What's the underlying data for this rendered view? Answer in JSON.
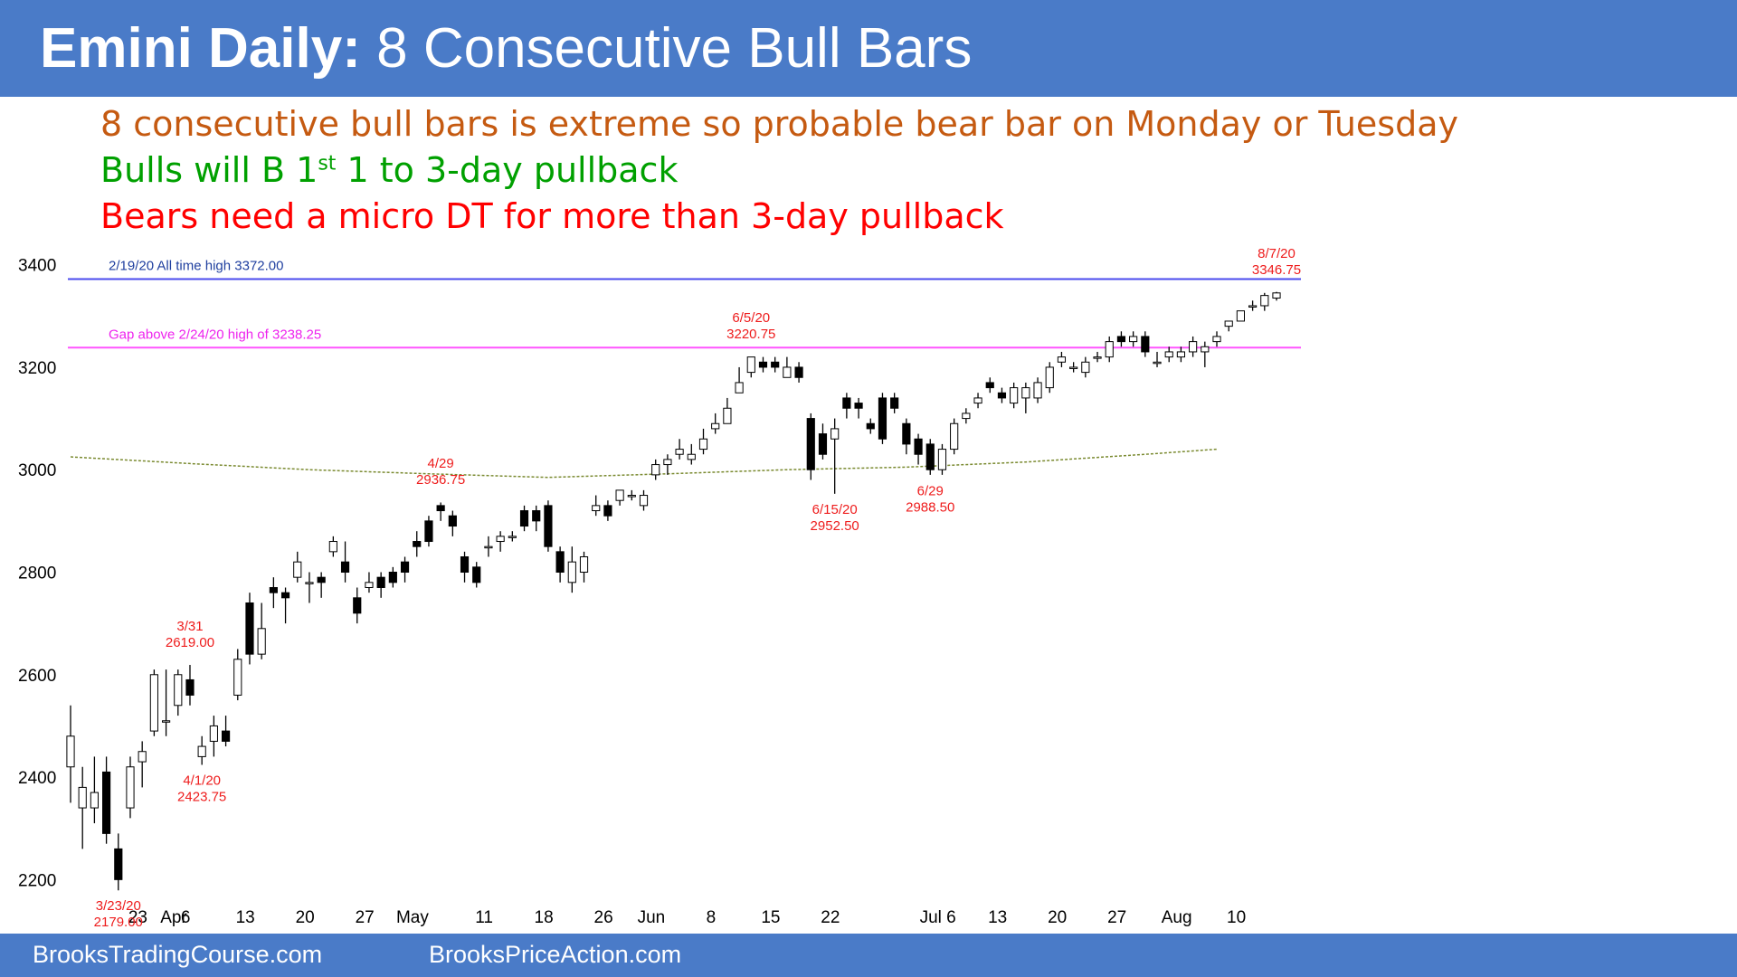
{
  "header": {
    "title_bold": "Emini Daily:",
    "title_rest": "8 Consecutive Bull Bars"
  },
  "notes": [
    {
      "text": "8 consecutive bull bars is extreme so probable bear bar on Monday or Tuesday",
      "color": "#c55a11"
    },
    {
      "text_before": "Bulls will B 1",
      "sup": "st",
      "text_after": " 1 to 3-day pullback",
      "color": "#00a000"
    },
    {
      "text": "Bears need a micro DT for more than 3-day pullback",
      "color": "#ff0000"
    }
  ],
  "footer": {
    "left": "BrooksTradingCourse.com",
    "right": "BrooksPriceAction.com"
  },
  "chart_data": {
    "type": "candlestick",
    "y_ticks": [
      2200,
      2400,
      2600,
      2800,
      3000,
      3200,
      3400
    ],
    "ylim": [
      2130,
      3440
    ],
    "x_ticks": [
      {
        "label": "23",
        "i": 2
      },
      {
        "label": "Apr",
        "i": 5
      },
      {
        "label": "6",
        "i": 6
      },
      {
        "label": "13",
        "i": 11
      },
      {
        "label": "20",
        "i": 16
      },
      {
        "label": "27",
        "i": 21
      },
      {
        "label": "May",
        "i": 25
      },
      {
        "label": "11",
        "i": 31
      },
      {
        "label": "18",
        "i": 36
      },
      {
        "label": "26",
        "i": 41
      },
      {
        "label": "Jun",
        "i": 45
      },
      {
        "label": "8",
        "i": 50
      },
      {
        "label": "15",
        "i": 55
      },
      {
        "label": "22",
        "i": 60
      },
      {
        "label": "Jul 6",
        "i": 69
      },
      {
        "label": "13",
        "i": 74
      },
      {
        "label": "20",
        "i": 79
      },
      {
        "label": "27",
        "i": 84
      },
      {
        "label": "Aug",
        "i": 89
      },
      {
        "label": "10",
        "i": 94
      }
    ],
    "hlines": [
      {
        "label": "2/19/20 All time high 3372.00",
        "value": 3372,
        "color": "#4a4aee",
        "text_color": "#1f3f9f"
      },
      {
        "label": "Gap above 2/24/20 high of 3238.25",
        "value": 3238.25,
        "color": "#ff55ff",
        "text_color": "#ee22ee"
      }
    ],
    "moving_average": {
      "color": "#7a8a30",
      "points": [
        [
          0,
          3025
        ],
        [
          10,
          3012
        ],
        [
          20,
          3000
        ],
        [
          30,
          2992
        ],
        [
          40,
          2985
        ],
        [
          50,
          2992
        ],
        [
          60,
          3000
        ],
        [
          70,
          3005
        ],
        [
          80,
          3015
        ],
        [
          90,
          3030
        ],
        [
          96,
          3040
        ]
      ]
    },
    "candles": [
      [
        2420,
        2480,
        2350,
        2540
      ],
      [
        2340,
        2380,
        2260,
        2420
      ],
      [
        2340,
        2370,
        2310,
        2440
      ],
      [
        2410,
        2290,
        2270,
        2440
      ],
      [
        2260,
        2200,
        2179,
        2290
      ],
      [
        2340,
        2420,
        2320,
        2440
      ],
      [
        2430,
        2450,
        2380,
        2470
      ],
      [
        2490,
        2600,
        2480,
        2610
      ],
      [
        2510,
        2510,
        2480,
        2610
      ],
      [
        2540,
        2600,
        2520,
        2610
      ],
      [
        2590,
        2560,
        2540,
        2619
      ],
      [
        2440,
        2460,
        2424,
        2480
      ],
      [
        2470,
        2500,
        2440,
        2520
      ],
      [
        2490,
        2470,
        2460,
        2520
      ],
      [
        2560,
        2630,
        2550,
        2650
      ],
      [
        2740,
        2640,
        2620,
        2760
      ],
      [
        2640,
        2690,
        2630,
        2740
      ],
      [
        2770,
        2760,
        2730,
        2790
      ],
      [
        2760,
        2750,
        2700,
        2770
      ],
      [
        2790,
        2820,
        2780,
        2840
      ],
      [
        2780,
        2780,
        2740,
        2800
      ],
      [
        2790,
        2780,
        2750,
        2800
      ],
      [
        2840,
        2860,
        2830,
        2870
      ],
      [
        2820,
        2800,
        2780,
        2860
      ],
      [
        2750,
        2720,
        2700,
        2770
      ],
      [
        2770,
        2780,
        2760,
        2800
      ],
      [
        2790,
        2770,
        2750,
        2800
      ],
      [
        2800,
        2780,
        2770,
        2810
      ],
      [
        2820,
        2800,
        2780,
        2830
      ],
      [
        2860,
        2850,
        2830,
        2880
      ],
      [
        2900,
        2860,
        2850,
        2910
      ],
      [
        2930,
        2920,
        2900,
        2936
      ],
      [
        2910,
        2890,
        2870,
        2920
      ],
      [
        2830,
        2800,
        2780,
        2840
      ],
      [
        2810,
        2780,
        2770,
        2820
      ],
      [
        2850,
        2850,
        2830,
        2870
      ],
      [
        2860,
        2870,
        2840,
        2880
      ],
      [
        2870,
        2870,
        2860,
        2880
      ],
      [
        2920,
        2890,
        2880,
        2930
      ],
      [
        2920,
        2900,
        2880,
        2930
      ],
      [
        2930,
        2850,
        2840,
        2940
      ],
      [
        2840,
        2800,
        2780,
        2850
      ],
      [
        2780,
        2820,
        2760,
        2850
      ],
      [
        2800,
        2830,
        2780,
        2840
      ],
      [
        2920,
        2930,
        2910,
        2950
      ],
      [
        2930,
        2910,
        2900,
        2940
      ],
      [
        2940,
        2960,
        2930,
        2960
      ],
      [
        2950,
        2950,
        2940,
        2960
      ],
      [
        2930,
        2950,
        2920,
        2960
      ],
      [
        2990,
        3010,
        2980,
        3020
      ],
      [
        3010,
        3020,
        2990,
        3030
      ],
      [
        3030,
        3040,
        3020,
        3060
      ],
      [
        3020,
        3030,
        3010,
        3050
      ],
      [
        3040,
        3060,
        3030,
        3080
      ],
      [
        3080,
        3090,
        3070,
        3110
      ],
      [
        3090,
        3120,
        3090,
        3140
      ],
      [
        3150,
        3170,
        3150,
        3200
      ],
      [
        3190,
        3220,
        3180,
        3220
      ],
      [
        3210,
        3200,
        3190,
        3220
      ],
      [
        3210,
        3200,
        3190,
        3220
      ],
      [
        3180,
        3200,
        3190,
        3220
      ],
      [
        3200,
        3180,
        3170,
        3210
      ],
      [
        3100,
        3000,
        2980,
        3110
      ],
      [
        3070,
        3030,
        3020,
        3090
      ],
      [
        3060,
        3080,
        2953,
        3100
      ],
      [
        3140,
        3120,
        3100,
        3150
      ],
      [
        3130,
        3120,
        3100,
        3140
      ],
      [
        3090,
        3080,
        3070,
        3100
      ],
      [
        3140,
        3060,
        3050,
        3150
      ],
      [
        3140,
        3120,
        3110,
        3150
      ],
      [
        3090,
        3050,
        3030,
        3100
      ],
      [
        3060,
        3030,
        3010,
        3070
      ],
      [
        3050,
        3000,
        2990,
        3060
      ],
      [
        3000,
        3040,
        2990,
        3050
      ],
      [
        3040,
        3090,
        3030,
        3100
      ],
      [
        3100,
        3110,
        3090,
        3120
      ],
      [
        3130,
        3140,
        3120,
        3150
      ],
      [
        3170,
        3160,
        3150,
        3180
      ],
      [
        3150,
        3140,
        3130,
        3160
      ],
      [
        3130,
        3160,
        3120,
        3170
      ],
      [
        3140,
        3160,
        3110,
        3170
      ],
      [
        3140,
        3170,
        3130,
        3180
      ],
      [
        3160,
        3200,
        3150,
        3210
      ],
      [
        3210,
        3220,
        3200,
        3230
      ],
      [
        3200,
        3200,
        3190,
        3210
      ],
      [
        3190,
        3210,
        3180,
        3220
      ],
      [
        3220,
        3220,
        3210,
        3230
      ],
      [
        3220,
        3250,
        3210,
        3260
      ],
      [
        3260,
        3250,
        3240,
        3270
      ],
      [
        3250,
        3260,
        3240,
        3270
      ],
      [
        3260,
        3230,
        3220,
        3270
      ],
      [
        3210,
        3210,
        3200,
        3230
      ],
      [
        3220,
        3230,
        3210,
        3240
      ],
      [
        3220,
        3230,
        3210,
        3240
      ],
      [
        3230,
        3250,
        3220,
        3260
      ],
      [
        3230,
        3240,
        3200,
        3250
      ],
      [
        3250,
        3260,
        3240,
        3270
      ],
      [
        3280,
        3290,
        3270,
        3290
      ],
      [
        3290,
        3310,
        3290,
        3310
      ],
      [
        3320,
        3320,
        3310,
        3330
      ],
      [
        3320,
        3340,
        3310,
        3345
      ],
      [
        3335,
        3345,
        3330,
        3347
      ]
    ],
    "annotations": [
      {
        "lines": [
          "3/23/20",
          "2179.00"
        ],
        "i": 4,
        "value": 2179,
        "pos": "below"
      },
      {
        "lines": [
          "3/31",
          "2619.00"
        ],
        "i": 10,
        "value": 2619,
        "pos": "above"
      },
      {
        "lines": [
          "4/1/20",
          "2423.75"
        ],
        "i": 11,
        "value": 2424,
        "pos": "below"
      },
      {
        "lines": [
          "4/29",
          "2936.75"
        ],
        "i": 31,
        "value": 2936.75,
        "pos": "above"
      },
      {
        "lines": [
          "6/5/20",
          "3220.75"
        ],
        "i": 57,
        "value": 3220.75,
        "pos": "above"
      },
      {
        "lines": [
          "6/15/20",
          "2952.50"
        ],
        "i": 64,
        "value": 2952.5,
        "pos": "below"
      },
      {
        "lines": [
          "6/29",
          "2988.50"
        ],
        "i": 72,
        "value": 2988.5,
        "pos": "below"
      },
      {
        "lines": [
          "8/7/20",
          "3346.75"
        ],
        "i": 101,
        "value": 3346.75,
        "pos": "above"
      }
    ]
  }
}
